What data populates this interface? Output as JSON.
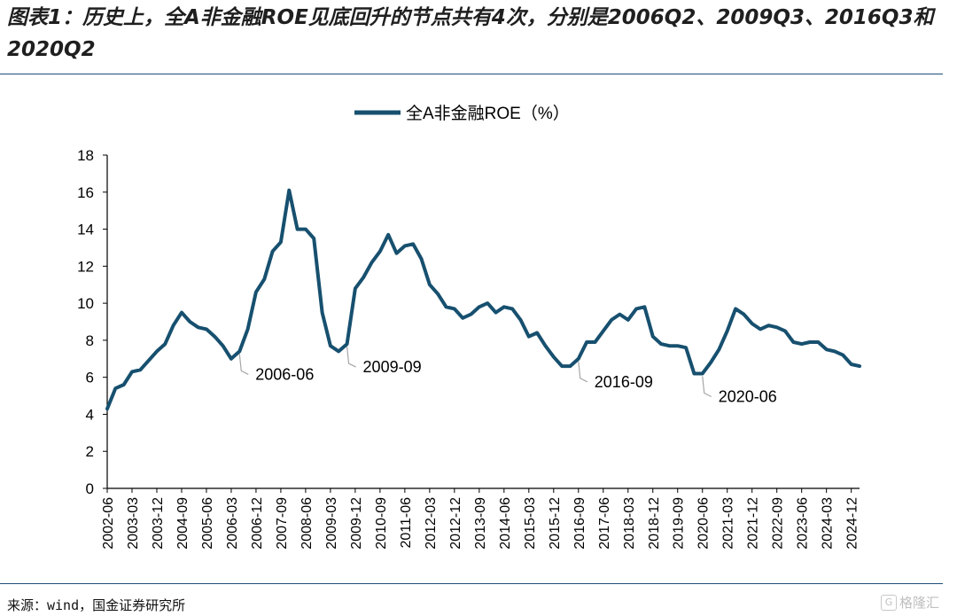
{
  "header": {
    "title": "图表1：历史上，全A非金融ROE见底回升的节点共有4次，分别是2006Q2、2009Q3、2016Q3和2020Q2"
  },
  "footer": {
    "source": "来源：wind，国金证券研究所",
    "watermark": "格隆汇"
  },
  "colors": {
    "line": "#17506f",
    "axis": "#000000",
    "rule": "#1f4e79",
    "annotation_line": "#a6a6a6"
  },
  "chart_data": {
    "type": "line",
    "title": "",
    "xlabel": "",
    "ylabel": "",
    "ylim": [
      0,
      18
    ],
    "yticks": [
      0,
      2,
      4,
      6,
      8,
      10,
      12,
      14,
      16,
      18
    ],
    "grid": false,
    "legend": "top-center",
    "x_tick_labels": [
      "2002-06",
      "2003-03",
      "2003-12",
      "2004-09",
      "2005-06",
      "2006-03",
      "2006-12",
      "2007-09",
      "2008-06",
      "2009-03",
      "2009-12",
      "2010-09",
      "2011-06",
      "2012-03",
      "2012-12",
      "2013-09",
      "2014-06",
      "2015-03",
      "2015-12",
      "2016-09",
      "2017-06",
      "2018-03",
      "2018-12",
      "2019-09",
      "2020-06",
      "2021-03",
      "2021-12",
      "2022-09",
      "2023-06",
      "2024-03",
      "2024-12"
    ],
    "series": [
      {
        "name": "全A非金融ROE（%）",
        "x": [
          "2002-06",
          "2002-09",
          "2002-12",
          "2003-03",
          "2003-06",
          "2003-09",
          "2003-12",
          "2004-03",
          "2004-06",
          "2004-09",
          "2004-12",
          "2005-03",
          "2005-06",
          "2005-09",
          "2005-12",
          "2006-03",
          "2006-06",
          "2006-09",
          "2006-12",
          "2007-03",
          "2007-06",
          "2007-09",
          "2007-12",
          "2008-03",
          "2008-06",
          "2008-09",
          "2008-12",
          "2009-03",
          "2009-06",
          "2009-09",
          "2009-12",
          "2010-03",
          "2010-06",
          "2010-09",
          "2010-12",
          "2011-03",
          "2011-06",
          "2011-09",
          "2011-12",
          "2012-03",
          "2012-06",
          "2012-09",
          "2012-12",
          "2013-03",
          "2013-06",
          "2013-09",
          "2013-12",
          "2014-03",
          "2014-06",
          "2014-09",
          "2014-12",
          "2015-03",
          "2015-06",
          "2015-09",
          "2015-12",
          "2016-03",
          "2016-06",
          "2016-09",
          "2016-12",
          "2017-03",
          "2017-06",
          "2017-09",
          "2017-12",
          "2018-03",
          "2018-06",
          "2018-09",
          "2018-12",
          "2019-03",
          "2019-06",
          "2019-09",
          "2019-12",
          "2020-03",
          "2020-06",
          "2020-09",
          "2020-12",
          "2021-03",
          "2021-06",
          "2021-09",
          "2021-12",
          "2022-03",
          "2022-06",
          "2022-09",
          "2022-12",
          "2023-03",
          "2023-06",
          "2023-09",
          "2023-12",
          "2024-03",
          "2024-06",
          "2024-09",
          "2024-12",
          "2025-03"
        ],
        "values": [
          4.3,
          5.4,
          5.6,
          6.3,
          6.4,
          6.9,
          7.4,
          7.8,
          8.8,
          9.5,
          9.0,
          8.7,
          8.6,
          8.2,
          7.7,
          7.0,
          7.4,
          8.6,
          10.6,
          11.3,
          12.8,
          13.3,
          16.1,
          14.0,
          14.0,
          13.5,
          9.5,
          7.7,
          7.4,
          7.8,
          10.8,
          11.4,
          12.2,
          12.8,
          13.7,
          12.7,
          13.1,
          13.2,
          12.4,
          11.0,
          10.5,
          9.8,
          9.7,
          9.2,
          9.4,
          9.8,
          10.0,
          9.5,
          9.8,
          9.7,
          9.1,
          8.2,
          8.4,
          7.7,
          7.1,
          6.6,
          6.6,
          7.0,
          7.9,
          7.9,
          8.5,
          9.1,
          9.4,
          9.1,
          9.7,
          9.8,
          8.2,
          7.8,
          7.7,
          7.7,
          7.6,
          6.2,
          6.2,
          6.8,
          7.5,
          8.5,
          9.7,
          9.4,
          8.9,
          8.6,
          8.8,
          8.7,
          8.5,
          7.9,
          7.8,
          7.9,
          7.9,
          7.5,
          7.4,
          7.2,
          6.7,
          6.6
        ]
      }
    ],
    "annotations": [
      {
        "label": "2006-06",
        "x": "2006-06",
        "value": 7.4
      },
      {
        "label": "2009-09",
        "x": "2009-09",
        "value": 7.8
      },
      {
        "label": "2016-09",
        "x": "2016-09",
        "value": 7.0
      },
      {
        "label": "2020-06",
        "x": "2020-06",
        "value": 6.2
      }
    ]
  }
}
